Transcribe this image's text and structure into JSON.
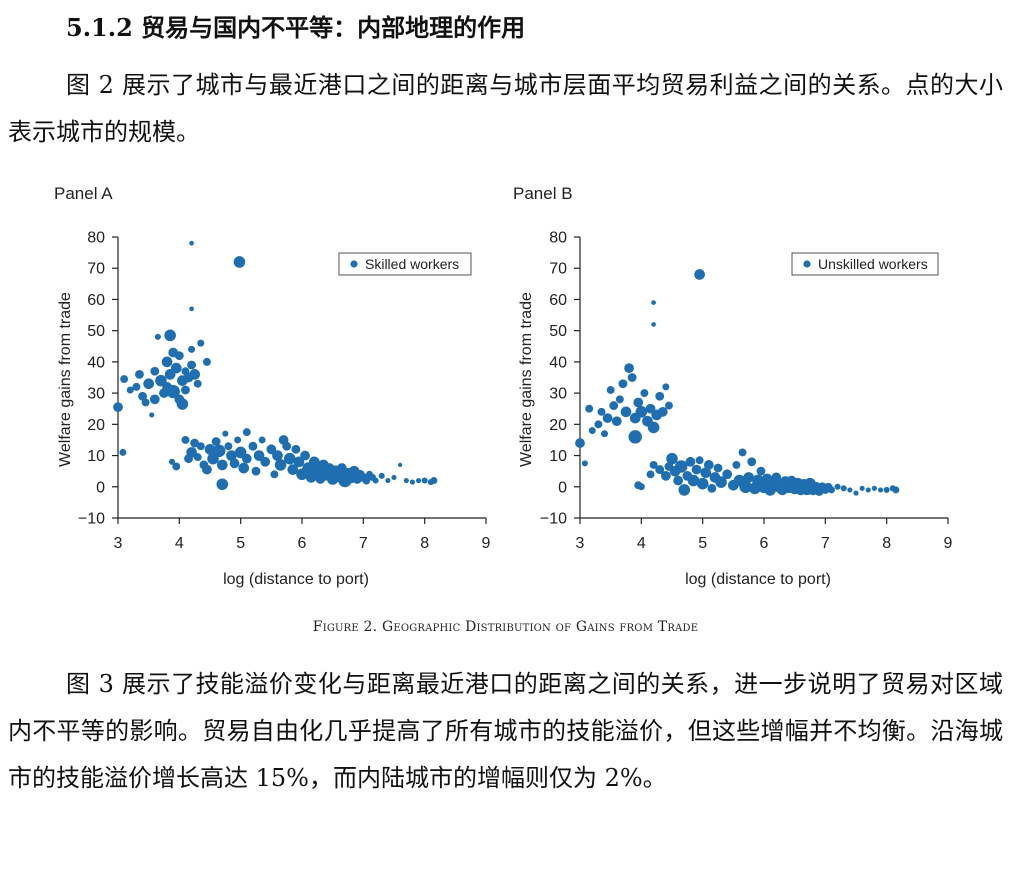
{
  "section_title": "5.1.2 贸易与国内不平等：内部地理的作用",
  "paragraph1": "图 2 展示了城市与最近港口之间的距离与城市层面平均贸易利益之间的关系。点的大小表示城市的规模。",
  "caption": "Figure 2. Geographic Distribution of Gains from Trade",
  "paragraph2": "图 3 展示了技能溢价变化与距离最近港口的距离之间的关系，进一步说明了贸易对区域内不平等的影响。贸易自由化几乎提高了所有城市的技能溢价，但这些增幅并不均衡。沿海城市的技能溢价增长高达 15%，而内陆城市的增幅则仅为 2%。",
  "colors": {
    "point": "#1f6fb0",
    "axis": "#222222"
  },
  "chart_data": [
    {
      "type": "scatter",
      "panel_label": "Panel A",
      "xlabel": "log (distance to port)",
      "ylabel": "Welfare gains from trade",
      "xlim": [
        3,
        9
      ],
      "ylim": [
        -10,
        80
      ],
      "xticks": [
        3,
        4,
        5,
        6,
        7,
        8,
        9
      ],
      "yticks": [
        -10,
        0,
        10,
        20,
        30,
        40,
        50,
        60,
        70,
        80
      ],
      "legend": "Skilled workers",
      "legend_position": "top-right",
      "grid": false,
      "points": [
        {
          "x": 4.98,
          "y": 72,
          "s": 1.0
        },
        {
          "x": 4.2,
          "y": 78,
          "s": 0.25
        },
        {
          "x": 4.2,
          "y": 57,
          "s": 0.25
        },
        {
          "x": 3.0,
          "y": 25.5,
          "s": 0.8
        },
        {
          "x": 3.08,
          "y": 11,
          "s": 0.5
        },
        {
          "x": 3.1,
          "y": 34.5,
          "s": 0.6
        },
        {
          "x": 3.2,
          "y": 31,
          "s": 0.5
        },
        {
          "x": 3.3,
          "y": 32,
          "s": 0.6
        },
        {
          "x": 3.35,
          "y": 36,
          "s": 0.7
        },
        {
          "x": 3.4,
          "y": 29,
          "s": 0.7
        },
        {
          "x": 3.45,
          "y": 27,
          "s": 0.6
        },
        {
          "x": 3.5,
          "y": 33,
          "s": 0.9
        },
        {
          "x": 3.55,
          "y": 23,
          "s": 0.3
        },
        {
          "x": 3.6,
          "y": 37,
          "s": 0.7
        },
        {
          "x": 3.6,
          "y": 28,
          "s": 0.8
        },
        {
          "x": 3.65,
          "y": 48,
          "s": 0.4
        },
        {
          "x": 3.7,
          "y": 34,
          "s": 1.0
        },
        {
          "x": 3.75,
          "y": 30,
          "s": 0.8
        },
        {
          "x": 3.8,
          "y": 40,
          "s": 0.9
        },
        {
          "x": 3.8,
          "y": 32,
          "s": 0.8
        },
        {
          "x": 3.85,
          "y": 48.5,
          "s": 1.0
        },
        {
          "x": 3.85,
          "y": 36,
          "s": 0.9
        },
        {
          "x": 3.9,
          "y": 43,
          "s": 0.8
        },
        {
          "x": 3.9,
          "y": 30.5,
          "s": 1.2
        },
        {
          "x": 3.95,
          "y": 38,
          "s": 0.9
        },
        {
          "x": 4.0,
          "y": 42,
          "s": 0.7
        },
        {
          "x": 4.0,
          "y": 28,
          "s": 0.8
        },
        {
          "x": 4.05,
          "y": 34,
          "s": 0.9
        },
        {
          "x": 4.05,
          "y": 26.5,
          "s": 1.0
        },
        {
          "x": 4.1,
          "y": 31,
          "s": 0.7
        },
        {
          "x": 4.1,
          "y": 37,
          "s": 0.6
        },
        {
          "x": 4.15,
          "y": 35,
          "s": 0.8
        },
        {
          "x": 4.2,
          "y": 44,
          "s": 0.5
        },
        {
          "x": 4.2,
          "y": 39,
          "s": 0.7
        },
        {
          "x": 4.25,
          "y": 36,
          "s": 0.9
        },
        {
          "x": 4.3,
          "y": 33,
          "s": 0.6
        },
        {
          "x": 4.35,
          "y": 46,
          "s": 0.5
        },
        {
          "x": 4.45,
          "y": 40,
          "s": 0.6
        },
        {
          "x": 3.88,
          "y": 8,
          "s": 0.4
        },
        {
          "x": 3.95,
          "y": 6.5,
          "s": 0.6
        },
        {
          "x": 4.1,
          "y": 15,
          "s": 0.6
        },
        {
          "x": 4.15,
          "y": 9,
          "s": 0.7
        },
        {
          "x": 4.2,
          "y": 11,
          "s": 0.9
        },
        {
          "x": 4.25,
          "y": 14,
          "s": 0.7
        },
        {
          "x": 4.3,
          "y": 9.5,
          "s": 0.6
        },
        {
          "x": 4.35,
          "y": 13,
          "s": 0.6
        },
        {
          "x": 4.4,
          "y": 7,
          "s": 0.7
        },
        {
          "x": 4.45,
          "y": 5.5,
          "s": 0.8
        },
        {
          "x": 4.5,
          "y": 12,
          "s": 0.9
        },
        {
          "x": 4.55,
          "y": 9,
          "s": 1.0
        },
        {
          "x": 4.6,
          "y": 14.5,
          "s": 0.7
        },
        {
          "x": 4.65,
          "y": 11.5,
          "s": 1.1
        },
        {
          "x": 4.7,
          "y": 7,
          "s": 0.9
        },
        {
          "x": 4.7,
          "y": 0.8,
          "s": 1.0
        },
        {
          "x": 4.75,
          "y": 17,
          "s": 0.4
        },
        {
          "x": 4.8,
          "y": 13,
          "s": 0.6
        },
        {
          "x": 4.85,
          "y": 10,
          "s": 0.9
        },
        {
          "x": 4.9,
          "y": 7.5,
          "s": 0.8
        },
        {
          "x": 4.95,
          "y": 15,
          "s": 0.5
        },
        {
          "x": 5.0,
          "y": 11,
          "s": 1.0
        },
        {
          "x": 5.05,
          "y": 6,
          "s": 0.9
        },
        {
          "x": 5.1,
          "y": 17.5,
          "s": 0.6
        },
        {
          "x": 5.1,
          "y": 9,
          "s": 0.8
        },
        {
          "x": 5.2,
          "y": 13,
          "s": 0.7
        },
        {
          "x": 5.25,
          "y": 5,
          "s": 0.7
        },
        {
          "x": 5.3,
          "y": 10,
          "s": 0.9
        },
        {
          "x": 5.35,
          "y": 15,
          "s": 0.5
        },
        {
          "x": 5.4,
          "y": 8,
          "s": 0.8
        },
        {
          "x": 5.5,
          "y": 12,
          "s": 0.8
        },
        {
          "x": 5.55,
          "y": 4,
          "s": 0.6
        },
        {
          "x": 5.6,
          "y": 10,
          "s": 0.9
        },
        {
          "x": 5.65,
          "y": 7,
          "s": 1.0
        },
        {
          "x": 5.7,
          "y": 15,
          "s": 0.8
        },
        {
          "x": 5.75,
          "y": 13,
          "s": 0.7
        },
        {
          "x": 5.8,
          "y": 9,
          "s": 1.0
        },
        {
          "x": 5.85,
          "y": 5.5,
          "s": 0.9
        },
        {
          "x": 5.9,
          "y": 12,
          "s": 0.7
        },
        {
          "x": 5.95,
          "y": 8,
          "s": 0.9
        },
        {
          "x": 6.0,
          "y": 4,
          "s": 1.0
        },
        {
          "x": 6.05,
          "y": 10,
          "s": 0.8
        },
        {
          "x": 6.1,
          "y": 6,
          "s": 1.0
        },
        {
          "x": 6.15,
          "y": 3,
          "s": 0.9
        },
        {
          "x": 6.2,
          "y": 8,
          "s": 0.9
        },
        {
          "x": 6.25,
          "y": 5,
          "s": 1.0
        },
        {
          "x": 6.3,
          "y": 2.5,
          "s": 0.8
        },
        {
          "x": 6.35,
          "y": 7,
          "s": 0.9
        },
        {
          "x": 6.4,
          "y": 4,
          "s": 1.1
        },
        {
          "x": 6.45,
          "y": 6,
          "s": 0.8
        },
        {
          "x": 6.5,
          "y": 2.5,
          "s": 1.0
        },
        {
          "x": 6.55,
          "y": 5,
          "s": 1.0
        },
        {
          "x": 6.6,
          "y": 3.5,
          "s": 1.1
        },
        {
          "x": 6.65,
          "y": 6,
          "s": 0.8
        },
        {
          "x": 6.7,
          "y": 2,
          "s": 1.2
        },
        {
          "x": 6.75,
          "y": 4,
          "s": 1.1
        },
        {
          "x": 6.8,
          "y": 3,
          "s": 1.0
        },
        {
          "x": 6.85,
          "y": 5,
          "s": 0.9
        },
        {
          "x": 6.9,
          "y": 2.5,
          "s": 0.8
        },
        {
          "x": 6.95,
          "y": 4,
          "s": 0.7
        },
        {
          "x": 7.0,
          "y": 3,
          "s": 0.7
        },
        {
          "x": 7.05,
          "y": 2,
          "s": 0.6
        },
        {
          "x": 7.1,
          "y": 4,
          "s": 0.5
        },
        {
          "x": 7.15,
          "y": 3,
          "s": 0.5
        },
        {
          "x": 7.2,
          "y": 2,
          "s": 0.4
        },
        {
          "x": 7.3,
          "y": 3.5,
          "s": 0.4
        },
        {
          "x": 7.4,
          "y": 2,
          "s": 0.3
        },
        {
          "x": 7.5,
          "y": 3,
          "s": 0.3
        },
        {
          "x": 7.6,
          "y": 7,
          "s": 0.2
        },
        {
          "x": 7.7,
          "y": 2,
          "s": 0.3
        },
        {
          "x": 7.8,
          "y": 1.5,
          "s": 0.3
        },
        {
          "x": 7.9,
          "y": 2,
          "s": 0.3
        },
        {
          "x": 8.0,
          "y": 2,
          "s": 0.4
        },
        {
          "x": 8.1,
          "y": 1.5,
          "s": 0.4
        },
        {
          "x": 8.15,
          "y": 2,
          "s": 0.5
        }
      ]
    },
    {
      "type": "scatter",
      "panel_label": "Panel B",
      "xlabel": "log (distance to port)",
      "ylabel": "Welfare gains from trade",
      "xlim": [
        3,
        9
      ],
      "ylim": [
        -10,
        80
      ],
      "xticks": [
        3,
        4,
        5,
        6,
        7,
        8,
        9
      ],
      "yticks": [
        -10,
        0,
        10,
        20,
        30,
        40,
        50,
        60,
        70,
        80
      ],
      "legend": "Unskilled workers",
      "legend_position": "top-right",
      "grid": false,
      "points": [
        {
          "x": 4.95,
          "y": 68,
          "s": 0.9
        },
        {
          "x": 4.2,
          "y": 59,
          "s": 0.25
        },
        {
          "x": 4.2,
          "y": 52,
          "s": 0.25
        },
        {
          "x": 3.0,
          "y": 14,
          "s": 0.8
        },
        {
          "x": 3.08,
          "y": 7.5,
          "s": 0.4
        },
        {
          "x": 3.15,
          "y": 25,
          "s": 0.6
        },
        {
          "x": 3.2,
          "y": 18,
          "s": 0.5
        },
        {
          "x": 3.3,
          "y": 20,
          "s": 0.6
        },
        {
          "x": 3.35,
          "y": 24,
          "s": 0.6
        },
        {
          "x": 3.4,
          "y": 17,
          "s": 0.5
        },
        {
          "x": 3.45,
          "y": 22,
          "s": 0.8
        },
        {
          "x": 3.5,
          "y": 31,
          "s": 0.6
        },
        {
          "x": 3.55,
          "y": 26,
          "s": 0.7
        },
        {
          "x": 3.6,
          "y": 21,
          "s": 0.8
        },
        {
          "x": 3.65,
          "y": 28,
          "s": 0.6
        },
        {
          "x": 3.7,
          "y": 33,
          "s": 0.7
        },
        {
          "x": 3.75,
          "y": 24,
          "s": 0.9
        },
        {
          "x": 3.8,
          "y": 38,
          "s": 0.8
        },
        {
          "x": 3.85,
          "y": 35,
          "s": 0.7
        },
        {
          "x": 3.9,
          "y": 16,
          "s": 1.2
        },
        {
          "x": 3.9,
          "y": 22,
          "s": 0.9
        },
        {
          "x": 3.95,
          "y": 27,
          "s": 0.8
        },
        {
          "x": 4.0,
          "y": 24,
          "s": 1.0
        },
        {
          "x": 4.05,
          "y": 30,
          "s": 0.6
        },
        {
          "x": 4.1,
          "y": 21,
          "s": 0.9
        },
        {
          "x": 4.15,
          "y": 25,
          "s": 0.8
        },
        {
          "x": 4.2,
          "y": 19,
          "s": 1.0
        },
        {
          "x": 4.25,
          "y": 23,
          "s": 0.9
        },
        {
          "x": 4.3,
          "y": 29,
          "s": 0.7
        },
        {
          "x": 4.35,
          "y": 24,
          "s": 0.8
        },
        {
          "x": 4.4,
          "y": 32,
          "s": 0.5
        },
        {
          "x": 4.45,
          "y": 26,
          "s": 0.6
        },
        {
          "x": 3.95,
          "y": 0.5,
          "s": 0.6
        },
        {
          "x": 4.0,
          "y": 0,
          "s": 0.5
        },
        {
          "x": 4.15,
          "y": 4,
          "s": 0.6
        },
        {
          "x": 4.2,
          "y": 7,
          "s": 0.6
        },
        {
          "x": 4.3,
          "y": 5.5,
          "s": 0.7
        },
        {
          "x": 4.4,
          "y": 3.5,
          "s": 0.8
        },
        {
          "x": 4.45,
          "y": 6.5,
          "s": 0.7
        },
        {
          "x": 4.5,
          "y": 9,
          "s": 1.0
        },
        {
          "x": 4.55,
          "y": 5,
          "s": 0.9
        },
        {
          "x": 4.6,
          "y": 2,
          "s": 0.8
        },
        {
          "x": 4.65,
          "y": 6.5,
          "s": 1.1
        },
        {
          "x": 4.7,
          "y": -1,
          "s": 1.0
        },
        {
          "x": 4.75,
          "y": 3.5,
          "s": 0.8
        },
        {
          "x": 4.8,
          "y": 8,
          "s": 0.8
        },
        {
          "x": 4.85,
          "y": 2,
          "s": 1.0
        },
        {
          "x": 4.9,
          "y": 5.5,
          "s": 0.8
        },
        {
          "x": 4.95,
          "y": 8.5,
          "s": 0.6
        },
        {
          "x": 5.0,
          "y": 1,
          "s": 1.0
        },
        {
          "x": 5.05,
          "y": 4.5,
          "s": 0.9
        },
        {
          "x": 5.1,
          "y": 7,
          "s": 0.8
        },
        {
          "x": 5.15,
          "y": -0.5,
          "s": 0.7
        },
        {
          "x": 5.2,
          "y": 3,
          "s": 0.9
        },
        {
          "x": 5.25,
          "y": 6,
          "s": 0.7
        },
        {
          "x": 5.3,
          "y": 1.5,
          "s": 1.0
        },
        {
          "x": 5.4,
          "y": 4,
          "s": 0.8
        },
        {
          "x": 5.5,
          "y": 0.5,
          "s": 0.9
        },
        {
          "x": 5.55,
          "y": 7,
          "s": 0.6
        },
        {
          "x": 5.6,
          "y": 2,
          "s": 1.0
        },
        {
          "x": 5.65,
          "y": 11,
          "s": 0.6
        },
        {
          "x": 5.7,
          "y": 0,
          "s": 1.1
        },
        {
          "x": 5.75,
          "y": 3,
          "s": 0.9
        },
        {
          "x": 5.8,
          "y": 8,
          "s": 0.7
        },
        {
          "x": 5.85,
          "y": -0.5,
          "s": 1.0
        },
        {
          "x": 5.9,
          "y": 2,
          "s": 1.0
        },
        {
          "x": 5.95,
          "y": 5,
          "s": 0.7
        },
        {
          "x": 6.0,
          "y": 0,
          "s": 1.1
        },
        {
          "x": 6.05,
          "y": 2.5,
          "s": 0.9
        },
        {
          "x": 6.1,
          "y": -1,
          "s": 1.0
        },
        {
          "x": 6.15,
          "y": 1,
          "s": 1.0
        },
        {
          "x": 6.2,
          "y": 3,
          "s": 0.8
        },
        {
          "x": 6.25,
          "y": 0,
          "s": 1.0
        },
        {
          "x": 6.3,
          "y": -1,
          "s": 0.9
        },
        {
          "x": 6.35,
          "y": 1.5,
          "s": 1.0
        },
        {
          "x": 6.4,
          "y": 0,
          "s": 1.1
        },
        {
          "x": 6.45,
          "y": 2,
          "s": 0.8
        },
        {
          "x": 6.5,
          "y": -0.5,
          "s": 1.0
        },
        {
          "x": 6.55,
          "y": 1,
          "s": 1.0
        },
        {
          "x": 6.6,
          "y": -1,
          "s": 0.9
        },
        {
          "x": 6.65,
          "y": 0.5,
          "s": 1.1
        },
        {
          "x": 6.7,
          "y": -0.5,
          "s": 1.2
        },
        {
          "x": 6.75,
          "y": 1,
          "s": 1.0
        },
        {
          "x": 6.8,
          "y": -1,
          "s": 0.9
        },
        {
          "x": 6.85,
          "y": 0,
          "s": 0.8
        },
        {
          "x": 6.9,
          "y": -1.5,
          "s": 0.7
        },
        {
          "x": 6.95,
          "y": 0,
          "s": 0.7
        },
        {
          "x": 7.0,
          "y": -1,
          "s": 0.6
        },
        {
          "x": 7.05,
          "y": 0,
          "s": 0.6
        },
        {
          "x": 7.1,
          "y": -1,
          "s": 0.5
        },
        {
          "x": 7.2,
          "y": 0,
          "s": 0.4
        },
        {
          "x": 7.3,
          "y": -0.5,
          "s": 0.4
        },
        {
          "x": 7.4,
          "y": -1,
          "s": 0.3
        },
        {
          "x": 7.5,
          "y": -2,
          "s": 0.3
        },
        {
          "x": 7.6,
          "y": -0.5,
          "s": 0.3
        },
        {
          "x": 7.7,
          "y": -1,
          "s": 0.3
        },
        {
          "x": 7.8,
          "y": -0.5,
          "s": 0.3
        },
        {
          "x": 7.9,
          "y": -1,
          "s": 0.3
        },
        {
          "x": 8.0,
          "y": -1,
          "s": 0.4
        },
        {
          "x": 8.1,
          "y": -0.5,
          "s": 0.4
        },
        {
          "x": 8.15,
          "y": -1,
          "s": 0.5
        }
      ]
    }
  ]
}
